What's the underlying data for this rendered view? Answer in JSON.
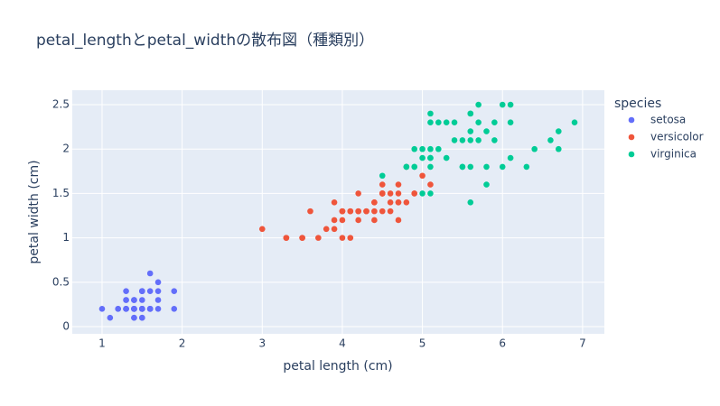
{
  "chart_data": {
    "type": "scatter",
    "title": "petal_lengthとpetal_widthの散布図（種類別）",
    "x_label": "petal length (cm)",
    "y_label": "petal width (cm)",
    "legend_title": "species",
    "legend_position": "right",
    "grid": true,
    "xlim": [
      0.628,
      7.272
    ],
    "ylim": [
      -0.081,
      2.663
    ],
    "xticks": [
      1,
      2,
      3,
      4,
      5,
      6,
      7
    ],
    "yticks": [
      0,
      0.5,
      1,
      1.5,
      2,
      2.5
    ],
    "series": [
      {
        "name": "setosa",
        "color": "#636efa",
        "x": [
          1.4,
          1.4,
          1.3,
          1.5,
          1.4,
          1.7,
          1.4,
          1.5,
          1.4,
          1.5,
          1.5,
          1.6,
          1.4,
          1.1,
          1.2,
          1.5,
          1.3,
          1.4,
          1.7,
          1.5,
          1.7,
          1.5,
          1.0,
          1.7,
          1.9,
          1.6,
          1.6,
          1.5,
          1.4,
          1.6,
          1.6,
          1.5,
          1.5,
          1.4,
          1.5,
          1.2,
          1.3,
          1.4,
          1.3,
          1.5,
          1.3,
          1.3,
          1.3,
          1.6,
          1.9,
          1.4,
          1.6,
          1.4,
          1.5,
          1.4
        ],
        "values": [
          0.2,
          0.2,
          0.2,
          0.2,
          0.2,
          0.4,
          0.3,
          0.2,
          0.2,
          0.1,
          0.2,
          0.2,
          0.1,
          0.1,
          0.2,
          0.4,
          0.4,
          0.3,
          0.3,
          0.3,
          0.2,
          0.4,
          0.2,
          0.5,
          0.2,
          0.2,
          0.4,
          0.2,
          0.2,
          0.2,
          0.2,
          0.4,
          0.1,
          0.2,
          0.2,
          0.2,
          0.2,
          0.1,
          0.2,
          0.2,
          0.3,
          0.3,
          0.2,
          0.6,
          0.4,
          0.3,
          0.2,
          0.2,
          0.2,
          0.2
        ]
      },
      {
        "name": "versicolor",
        "color": "#EF553B",
        "x": [
          4.7,
          4.5,
          4.9,
          4.0,
          4.6,
          4.5,
          4.7,
          3.3,
          4.6,
          3.9,
          3.5,
          4.2,
          4.0,
          4.7,
          3.6,
          4.4,
          4.5,
          4.1,
          4.5,
          3.9,
          4.8,
          4.0,
          4.9,
          4.7,
          4.3,
          4.4,
          4.8,
          5.0,
          4.5,
          3.5,
          3.8,
          3.7,
          3.9,
          5.1,
          4.5,
          4.5,
          4.7,
          4.4,
          4.1,
          4.0,
          4.4,
          4.6,
          4.0,
          3.3,
          4.2,
          4.2,
          4.2,
          4.3,
          3.0,
          4.1
        ],
        "values": [
          1.4,
          1.5,
          1.5,
          1.3,
          1.5,
          1.3,
          1.6,
          1.0,
          1.3,
          1.4,
          1.0,
          1.5,
          1.0,
          1.4,
          1.3,
          1.4,
          1.5,
          1.0,
          1.5,
          1.1,
          1.8,
          1.3,
          1.5,
          1.2,
          1.3,
          1.4,
          1.4,
          1.7,
          1.5,
          1.0,
          1.1,
          1.0,
          1.2,
          1.6,
          1.5,
          1.6,
          1.5,
          1.3,
          1.3,
          1.3,
          1.2,
          1.4,
          1.2,
          1.0,
          1.3,
          1.2,
          1.3,
          1.3,
          1.1,
          1.3
        ]
      },
      {
        "name": "virginica",
        "color": "#00cc96",
        "x": [
          6.0,
          5.1,
          5.9,
          5.6,
          5.8,
          6.6,
          4.5,
          6.3,
          5.8,
          6.1,
          5.1,
          5.3,
          5.5,
          5.0,
          5.1,
          5.3,
          5.5,
          6.7,
          6.9,
          5.0,
          5.7,
          4.9,
          6.7,
          4.9,
          5.7,
          6.0,
          4.8,
          4.9,
          5.6,
          5.8,
          6.1,
          6.4,
          5.6,
          5.1,
          5.6,
          6.1,
          5.6,
          5.5,
          4.8,
          5.4,
          5.6,
          5.1,
          5.1,
          5.9,
          5.7,
          5.2,
          5.0,
          5.2,
          5.4,
          5.1
        ],
        "values": [
          2.5,
          1.9,
          2.1,
          1.8,
          2.2,
          2.1,
          1.7,
          1.8,
          1.8,
          2.5,
          2.0,
          1.9,
          2.1,
          2.0,
          2.4,
          2.3,
          1.8,
          2.2,
          2.3,
          1.5,
          2.3,
          2.0,
          2.0,
          1.8,
          2.1,
          1.8,
          1.8,
          1.8,
          2.1,
          1.6,
          1.9,
          2.0,
          2.2,
          1.5,
          1.4,
          2.3,
          2.4,
          1.8,
          1.8,
          2.1,
          2.4,
          2.3,
          1.9,
          2.3,
          2.5,
          2.3,
          1.9,
          2.0,
          2.3,
          1.8
        ]
      }
    ]
  }
}
